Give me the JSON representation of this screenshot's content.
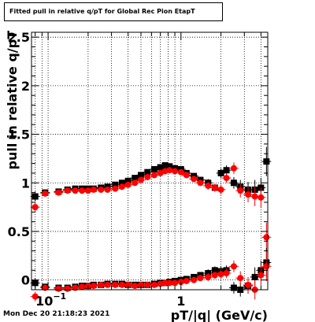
{
  "title": "Fitted pull in relative q/pT for Global Rec Pion EtapT",
  "timestamp": "Mon Dec 20 21:18:23 2021",
  "chart_data": {
    "type": "scatter",
    "title": "Fitted pull in relative q/pT for Global Rec Pion EtapT",
    "xlabel": "pT/|q| (GeV/c)",
    "ylabel": "pull in relative q/pT",
    "xscale": "log",
    "xlim": [
      0.075,
      4.5
    ],
    "ylim": [
      -0.1,
      2.55
    ],
    "x_ticks": [
      {
        "v": 0.1,
        "base": "10",
        "exp": "−1"
      },
      {
        "v": 1,
        "label": "1"
      }
    ],
    "y_ticks": [
      {
        "v": 0,
        "label": "0"
      },
      {
        "v": 0.5,
        "label": "0.5"
      },
      {
        "v": 1,
        "label": "1"
      },
      {
        "v": 1.5,
        "label": "1.5"
      },
      {
        "v": 2,
        "label": "2"
      },
      {
        "v": 2.5,
        "label": "2.5"
      }
    ],
    "grid": true,
    "colors": {
      "black": "#000000",
      "red": "#ff0000"
    },
    "series": [
      {
        "color": "black",
        "x": [
          0.08,
          0.095,
          0.12,
          0.14,
          0.16,
          0.18,
          0.2,
          0.22,
          0.25,
          0.28,
          0.32,
          0.36,
          0.4,
          0.45,
          0.5,
          0.56,
          0.63,
          0.7,
          0.76,
          0.82,
          0.9,
          1.0,
          1.1,
          1.25,
          1.4,
          1.6,
          1.8,
          2.0,
          2.2,
          2.5,
          2.8,
          3.2,
          3.6,
          4.0,
          4.4
        ],
        "y": [
          0.86,
          0.9,
          0.91,
          0.93,
          0.94,
          0.94,
          0.94,
          0.94,
          0.95,
          0.96,
          0.98,
          1.0,
          1.02,
          1.05,
          1.08,
          1.11,
          1.14,
          1.16,
          1.18,
          1.17,
          1.15,
          1.14,
          1.1,
          1.07,
          1.03,
          1.0,
          0.95,
          1.1,
          1.13,
          1.0,
          0.96,
          0.93,
          0.93,
          0.95,
          1.22
        ],
        "err": [
          0.05,
          0.03,
          0.02,
          0.02,
          0.02,
          0.02,
          0.02,
          0.02,
          0.02,
          0.02,
          0.02,
          0.02,
          0.02,
          0.02,
          0.02,
          0.02,
          0.02,
          0.02,
          0.03,
          0.03,
          0.03,
          0.03,
          0.03,
          0.03,
          0.03,
          0.04,
          0.04,
          0.05,
          0.05,
          0.06,
          0.07,
          0.08,
          0.1,
          0.1,
          0.15
        ]
      },
      {
        "color": "red",
        "x": [
          0.08,
          0.095,
          0.12,
          0.14,
          0.16,
          0.18,
          0.2,
          0.22,
          0.25,
          0.28,
          0.32,
          0.36,
          0.4,
          0.45,
          0.5,
          0.56,
          0.63,
          0.7,
          0.76,
          0.82,
          0.9,
          1.0,
          1.1,
          1.25,
          1.4,
          1.6,
          1.8,
          2.0,
          2.2,
          2.5,
          2.8,
          3.2,
          3.6,
          4.0,
          4.4
        ],
        "y": [
          0.75,
          0.89,
          0.9,
          0.92,
          0.92,
          0.92,
          0.92,
          0.93,
          0.93,
          0.93,
          0.94,
          0.96,
          0.98,
          1.0,
          1.03,
          1.06,
          1.08,
          1.1,
          1.12,
          1.13,
          1.12,
          1.11,
          1.08,
          1.04,
          1.0,
          0.97,
          0.95,
          0.93,
          1.05,
          1.15,
          0.92,
          0.88,
          0.86,
          0.85,
          0.44
        ],
        "err": [
          0.05,
          0.03,
          0.02,
          0.02,
          0.02,
          0.02,
          0.02,
          0.02,
          0.02,
          0.02,
          0.02,
          0.02,
          0.02,
          0.02,
          0.02,
          0.02,
          0.02,
          0.02,
          0.03,
          0.03,
          0.03,
          0.03,
          0.03,
          0.03,
          0.03,
          0.04,
          0.04,
          0.05,
          0.05,
          0.06,
          0.07,
          0.08,
          0.1,
          0.1,
          0.15
        ]
      },
      {
        "color": "black",
        "x": [
          0.08,
          0.095,
          0.12,
          0.14,
          0.16,
          0.18,
          0.2,
          0.22,
          0.25,
          0.28,
          0.32,
          0.36,
          0.4,
          0.45,
          0.5,
          0.56,
          0.63,
          0.7,
          0.76,
          0.82,
          0.9,
          1.0,
          1.1,
          1.25,
          1.4,
          1.6,
          1.8,
          2.0,
          2.2,
          2.5,
          2.8,
          3.2,
          3.6,
          4.0,
          4.4
        ],
        "y": [
          -0.03,
          -0.07,
          -0.08,
          -0.08,
          -0.07,
          -0.06,
          -0.06,
          -0.05,
          -0.05,
          -0.04,
          -0.04,
          -0.04,
          -0.05,
          -0.05,
          -0.05,
          -0.05,
          -0.04,
          -0.03,
          -0.03,
          -0.02,
          -0.01,
          0.0,
          0.01,
          0.03,
          0.05,
          0.07,
          0.1,
          0.09,
          0.1,
          -0.08,
          -0.1,
          -0.06,
          0.03,
          0.1,
          0.18
        ],
        "err": [
          0.05,
          0.03,
          0.02,
          0.02,
          0.02,
          0.02,
          0.02,
          0.02,
          0.02,
          0.02,
          0.02,
          0.02,
          0.02,
          0.02,
          0.02,
          0.02,
          0.02,
          0.02,
          0.03,
          0.03,
          0.03,
          0.03,
          0.03,
          0.03,
          0.03,
          0.04,
          0.04,
          0.05,
          0.05,
          0.06,
          0.07,
          0.08,
          0.1,
          0.1,
          0.15
        ]
      },
      {
        "color": "red",
        "x": [
          0.08,
          0.095,
          0.12,
          0.14,
          0.16,
          0.18,
          0.2,
          0.22,
          0.25,
          0.28,
          0.32,
          0.36,
          0.4,
          0.45,
          0.5,
          0.56,
          0.63,
          0.7,
          0.76,
          0.82,
          0.9,
          1.0,
          1.1,
          1.25,
          1.4,
          1.6,
          1.8,
          2.0,
          2.2,
          2.5,
          2.8,
          3.2,
          3.6,
          4.0,
          4.4
        ],
        "y": [
          -0.17,
          -0.08,
          -0.09,
          -0.09,
          -0.08,
          -0.07,
          -0.06,
          -0.06,
          -0.05,
          -0.05,
          -0.05,
          -0.05,
          -0.05,
          -0.06,
          -0.05,
          -0.05,
          -0.05,
          -0.04,
          -0.03,
          -0.03,
          -0.03,
          -0.02,
          -0.01,
          0.0,
          0.02,
          0.03,
          0.05,
          0.06,
          0.07,
          0.14,
          0.02,
          -0.05,
          -0.1,
          0.05,
          0.14
        ],
        "err": [
          0.05,
          0.03,
          0.02,
          0.02,
          0.02,
          0.02,
          0.02,
          0.02,
          0.02,
          0.02,
          0.02,
          0.02,
          0.02,
          0.02,
          0.02,
          0.02,
          0.02,
          0.02,
          0.03,
          0.03,
          0.03,
          0.03,
          0.03,
          0.03,
          0.03,
          0.04,
          0.04,
          0.05,
          0.05,
          0.06,
          0.07,
          0.08,
          0.1,
          0.1,
          0.15
        ]
      }
    ]
  }
}
